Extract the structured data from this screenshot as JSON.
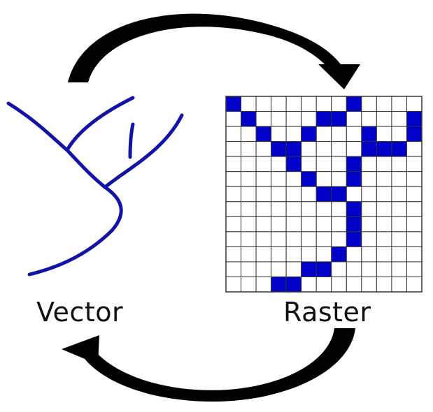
{
  "labels": {
    "vector": "Vector",
    "raster": "Raster"
  },
  "colors": {
    "line": "#1212a8",
    "cell_fill": "#0000c8",
    "grid": "#333333",
    "arrow": "#000000",
    "background": "#ffffff"
  },
  "raster": {
    "rows": 13,
    "cols": 13,
    "filled_cells": [
      [
        0,
        0
      ],
      [
        0,
        8
      ],
      [
        1,
        1
      ],
      [
        1,
        6
      ],
      [
        1,
        7
      ],
      [
        1,
        12
      ],
      [
        2,
        2
      ],
      [
        2,
        5
      ],
      [
        2,
        9
      ],
      [
        2,
        12
      ],
      [
        3,
        3
      ],
      [
        3,
        4
      ],
      [
        3,
        9
      ],
      [
        3,
        10
      ],
      [
        3,
        11
      ],
      [
        4,
        4
      ],
      [
        4,
        8
      ],
      [
        5,
        5
      ],
      [
        5,
        8
      ],
      [
        6,
        6
      ],
      [
        6,
        7
      ],
      [
        7,
        8
      ],
      [
        8,
        8
      ],
      [
        9,
        8
      ],
      [
        10,
        7
      ],
      [
        11,
        5
      ],
      [
        11,
        6
      ],
      [
        12,
        3
      ],
      [
        12,
        4
      ]
    ]
  },
  "icons": {
    "top_arrow": "curved-arrow-right-icon",
    "bottom_arrow": "curved-arrow-left-icon"
  }
}
